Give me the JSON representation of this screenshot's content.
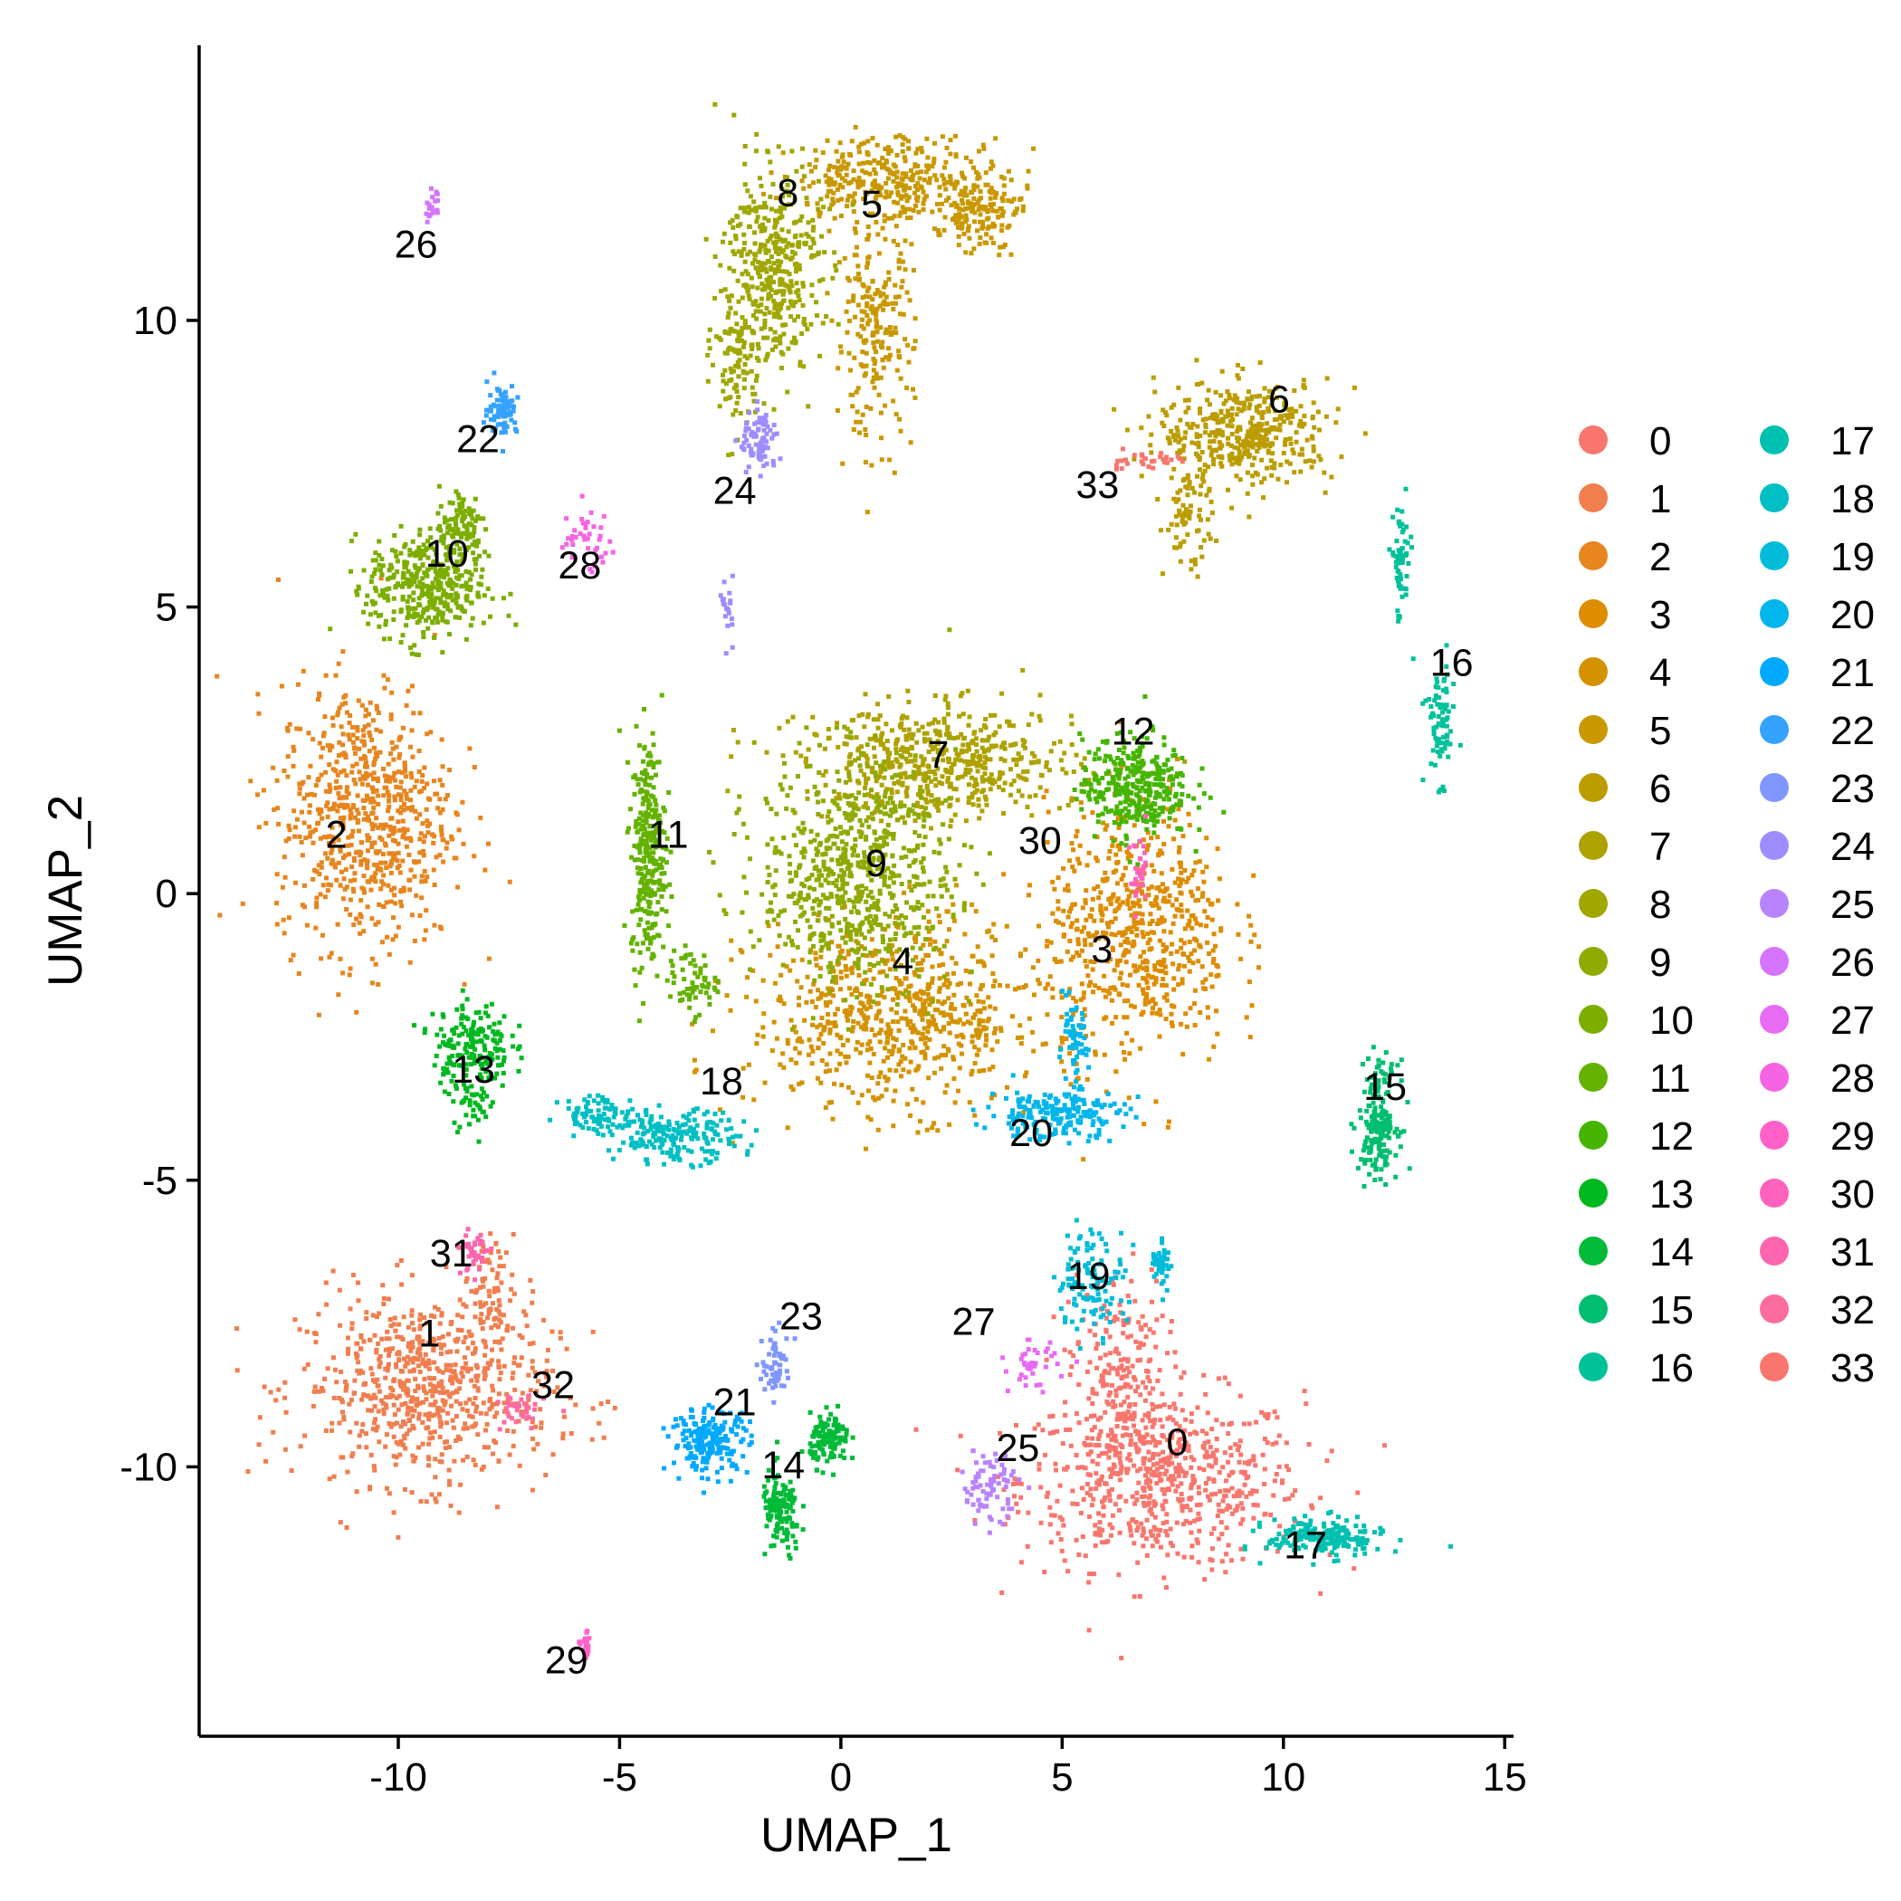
{
  "chart_data": {
    "type": "scatter",
    "title": "",
    "xlabel": "UMAP_1",
    "ylabel": "UMAP_2",
    "xlim": [
      -14.5,
      15.2
    ],
    "ylim": [
      -14.7,
      14.8
    ],
    "xticks": [
      -10,
      -5,
      0,
      5,
      10,
      15
    ],
    "yticks": [
      -10,
      -5,
      0,
      5,
      10
    ],
    "xtick_labels": [
      "-10",
      "-5",
      "0",
      "5",
      "10",
      "15"
    ],
    "ytick_labels": [
      "-10",
      "-5",
      "0",
      "5",
      "10"
    ],
    "grid": false,
    "legend_position": "right",
    "legend_columns": 2,
    "clusters": [
      {
        "id": "0",
        "color": "#F8766D",
        "label_pos": [
          7.6,
          -9.8
        ],
        "blobs": [
          [
            7.2,
            -10.2,
            2.9,
            1.4,
            650
          ],
          [
            6.2,
            -8.3,
            1.0,
            1.6,
            200
          ]
        ]
      },
      {
        "id": "1",
        "color": "#F07E4F",
        "label_pos": [
          -9.3,
          -7.9
        ],
        "blobs": [
          [
            -9.4,
            -8.6,
            2.6,
            1.5,
            700
          ],
          [
            -8.0,
            -6.9,
            0.5,
            0.9,
            60
          ]
        ]
      },
      {
        "id": "2",
        "color": "#E7851E",
        "label_pos": [
          -11.4,
          0.8
        ],
        "blobs": [
          [
            -10.8,
            1.4,
            1.8,
            2.1,
            700
          ]
        ]
      },
      {
        "id": "3",
        "color": "#DE8C00",
        "label_pos": [
          5.9,
          -1.2
        ],
        "blobs": [
          [
            6.7,
            -0.6,
            1.9,
            2.0,
            600
          ]
        ]
      },
      {
        "id": "4",
        "color": "#D49200",
        "label_pos": [
          1.4,
          -1.4
        ],
        "blobs": [
          [
            1.2,
            -2.1,
            3.0,
            1.5,
            700
          ]
        ]
      },
      {
        "id": "5",
        "color": "#C99800",
        "label_pos": [
          0.7,
          11.8
        ],
        "blobs": [
          [
            1.3,
            12.5,
            2.2,
            0.7,
            350
          ],
          [
            3.1,
            11.9,
            0.8,
            0.6,
            120
          ],
          [
            0.7,
            9.8,
            0.8,
            1.7,
            220
          ]
        ]
      },
      {
        "id": "6",
        "color": "#BB9D00",
        "label_pos": [
          9.9,
          8.4
        ],
        "blobs": [
          [
            9.1,
            8.1,
            1.8,
            0.8,
            400
          ],
          [
            7.8,
            6.6,
            0.5,
            0.9,
            80
          ]
        ]
      },
      {
        "id": "7",
        "color": "#AEA200",
        "label_pos": [
          2.2,
          2.2
        ],
        "blobs": [
          [
            2.2,
            2.3,
            2.8,
            0.9,
            550
          ]
        ]
      },
      {
        "id": "8",
        "color": "#9FA700",
        "label_pos": [
          -1.2,
          12.0
        ],
        "blobs": [
          [
            -1.6,
            11.0,
            1.0,
            1.6,
            400
          ],
          [
            -2.4,
            9.3,
            0.5,
            1.2,
            100
          ]
        ]
      },
      {
        "id": "9",
        "color": "#8FAA00",
        "label_pos": [
          0.8,
          0.3
        ],
        "blobs": [
          [
            0.3,
            0.4,
            2.0,
            1.8,
            700
          ]
        ]
      },
      {
        "id": "10",
        "color": "#7CAE00",
        "label_pos": [
          -8.9,
          5.7
        ],
        "blobs": [
          [
            -9.4,
            5.4,
            1.2,
            0.9,
            400
          ],
          [
            -8.6,
            6.5,
            0.5,
            0.6,
            80
          ]
        ]
      },
      {
        "id": "11",
        "color": "#64B200",
        "label_pos": [
          -3.9,
          0.8
        ],
        "blobs": [
          [
            -4.4,
            0.8,
            0.35,
            1.8,
            300
          ],
          [
            -3.4,
            -1.5,
            0.5,
            0.5,
            60
          ]
        ]
      },
      {
        "id": "12",
        "color": "#45B500",
        "label_pos": [
          6.6,
          2.6
        ],
        "blobs": [
          [
            6.6,
            1.9,
            1.1,
            0.8,
            350
          ]
        ]
      },
      {
        "id": "13",
        "color": "#00B81F",
        "label_pos": [
          -8.3,
          -3.3
        ],
        "blobs": [
          [
            -8.4,
            -2.6,
            0.8,
            0.7,
            180
          ],
          [
            -8.4,
            -3.6,
            0.5,
            0.4,
            40
          ]
        ]
      },
      {
        "id": "14",
        "color": "#00BA38",
        "label_pos": [
          -1.3,
          -10.2
        ],
        "blobs": [
          [
            -0.3,
            -9.5,
            0.4,
            0.4,
            120
          ],
          [
            -1.4,
            -10.8,
            0.4,
            0.7,
            120
          ]
        ]
      },
      {
        "id": "15",
        "color": "#00BE70",
        "label_pos": [
          12.3,
          -3.6
        ],
        "blobs": [
          [
            12.1,
            -3.9,
            0.4,
            0.9,
            180
          ]
        ]
      },
      {
        "id": "16",
        "color": "#00C19A",
        "label_pos": [
          13.8,
          3.8
        ],
        "blobs": [
          [
            13.5,
            3.0,
            0.3,
            0.9,
            80
          ],
          [
            12.6,
            5.8,
            0.2,
            1.0,
            60
          ]
        ]
      },
      {
        "id": "17",
        "color": "#00C0B0",
        "label_pos": [
          10.5,
          -11.6
        ],
        "blobs": [
          [
            10.9,
            -11.2,
            1.2,
            0.3,
            200
          ]
        ]
      },
      {
        "id": "18",
        "color": "#00BFC4",
        "label_pos": [
          -2.7,
          -3.5
        ],
        "blobs": [
          [
            -3.8,
            -4.2,
            1.3,
            0.4,
            200
          ],
          [
            -5.5,
            -3.8,
            0.8,
            0.3,
            80
          ]
        ]
      },
      {
        "id": "19",
        "color": "#00BCD8",
        "label_pos": [
          5.6,
          -6.9
        ],
        "blobs": [
          [
            5.6,
            -6.7,
            0.7,
            0.8,
            120
          ],
          [
            7.2,
            -6.4,
            0.2,
            0.4,
            40
          ]
        ]
      },
      {
        "id": "20",
        "color": "#00B6EB",
        "label_pos": [
          4.3,
          -4.4
        ],
        "blobs": [
          [
            4.8,
            -3.8,
            1.4,
            0.4,
            200
          ],
          [
            5.2,
            -2.6,
            0.3,
            0.6,
            60
          ]
        ]
      },
      {
        "id": "21",
        "color": "#00A9FF",
        "label_pos": [
          -2.4,
          -9.1
        ],
        "blobs": [
          [
            -3.0,
            -9.5,
            0.8,
            0.5,
            200
          ]
        ]
      },
      {
        "id": "22",
        "color": "#35A2FF",
        "label_pos": [
          -8.2,
          7.7
        ],
        "blobs": [
          [
            -7.7,
            8.5,
            0.3,
            0.4,
            80
          ]
        ]
      },
      {
        "id": "23",
        "color": "#7F96FF",
        "label_pos": [
          -0.9,
          -7.6
        ],
        "blobs": [
          [
            -1.5,
            -8.2,
            0.3,
            0.5,
            60
          ]
        ]
      },
      {
        "id": "24",
        "color": "#9D8DFF",
        "label_pos": [
          -2.4,
          6.8
        ],
        "blobs": [
          [
            -1.9,
            7.9,
            0.4,
            0.5,
            80
          ],
          [
            -2.6,
            5.0,
            0.1,
            0.5,
            20
          ]
        ]
      },
      {
        "id": "25",
        "color": "#B983FF",
        "label_pos": [
          4.0,
          -9.9
        ],
        "blobs": [
          [
            3.3,
            -10.3,
            0.6,
            0.6,
            80
          ]
        ]
      },
      {
        "id": "26",
        "color": "#D574FE",
        "label_pos": [
          -9.6,
          11.1
        ],
        "blobs": [
          [
            -9.3,
            12.0,
            0.15,
            0.25,
            20
          ]
        ]
      },
      {
        "id": "27",
        "color": "#E76BF3",
        "label_pos": [
          3.0,
          -7.7
        ],
        "blobs": [
          [
            4.3,
            -8.2,
            0.5,
            0.4,
            40
          ]
        ]
      },
      {
        "id": "28",
        "color": "#F564E3",
        "label_pos": [
          -5.9,
          5.5
        ],
        "blobs": [
          [
            -5.8,
            6.2,
            0.6,
            0.5,
            40
          ]
        ]
      },
      {
        "id": "29",
        "color": "#FF61C9",
        "label_pos": [
          -6.2,
          -13.6
        ],
        "blobs": [
          [
            -5.8,
            -13.1,
            0.1,
            0.2,
            20
          ]
        ]
      },
      {
        "id": "30",
        "color": "#FF62BC",
        "label_pos": [
          4.5,
          0.7
        ],
        "blobs": [
          [
            6.7,
            0.3,
            0.2,
            0.6,
            30
          ]
        ]
      },
      {
        "id": "31",
        "color": "#FF65AE",
        "label_pos": [
          -8.8,
          -6.5
        ],
        "blobs": [
          [
            -8.3,
            -6.2,
            0.3,
            0.4,
            40
          ]
        ]
      },
      {
        "id": "32",
        "color": "#FD6C9E",
        "label_pos": [
          -6.5,
          -8.8
        ],
        "blobs": [
          [
            -7.3,
            -9.0,
            0.5,
            0.3,
            40
          ]
        ]
      },
      {
        "id": "33",
        "color": "#F8766D",
        "label_pos": [
          5.8,
          6.9
        ],
        "blobs": [
          [
            6.7,
            7.6,
            0.9,
            0.15,
            30
          ]
        ]
      }
    ]
  }
}
